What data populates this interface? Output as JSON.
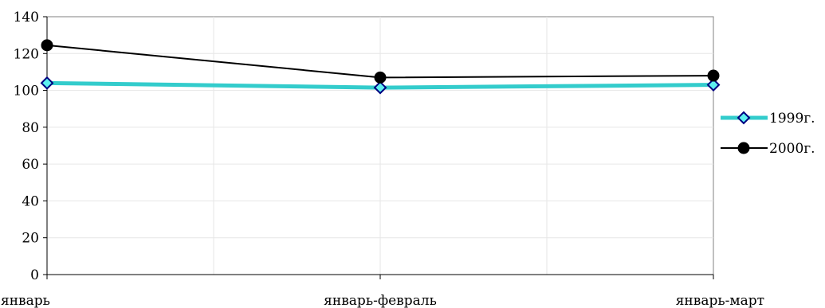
{
  "chart_data": {
    "type": "line",
    "categories": [
      "январь",
      "январь-февраль",
      "январь-март"
    ],
    "series": [
      {
        "name": "1999г.",
        "values": [
          104,
          101.5,
          103
        ],
        "color": "#33CCCC",
        "marker": "diamond",
        "marker_fill": "#5EF0F0",
        "marker_stroke": "#000080"
      },
      {
        "name": "2000г.",
        "values": [
          124.5,
          107,
          108
        ],
        "color": "#000000",
        "marker": "circle",
        "marker_fill": "#000000",
        "marker_stroke": "#000000"
      }
    ],
    "yticks": [
      0,
      20,
      40,
      60,
      80,
      100,
      120,
      140
    ],
    "ylim": [
      0,
      140
    ],
    "grid": true,
    "legend_position": "right"
  }
}
